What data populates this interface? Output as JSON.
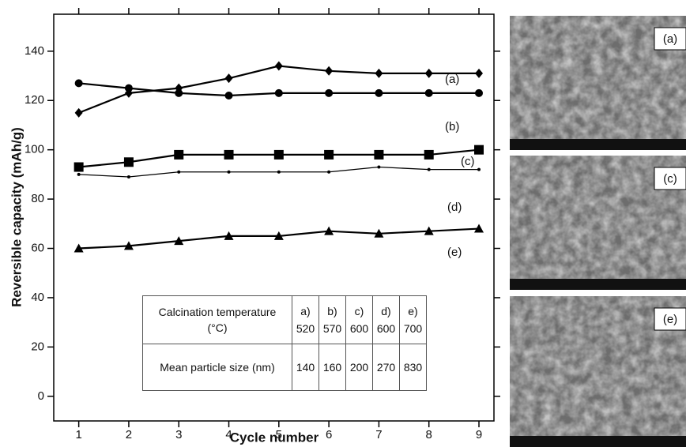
{
  "chart_data": {
    "type": "line",
    "xlabel": "Cycle number",
    "ylabel": "Reversible capacity (mAh/g)",
    "xlim": [
      0.5,
      9.3
    ],
    "ylim": [
      -10,
      155
    ],
    "xticks": [
      1,
      2,
      3,
      4,
      5,
      6,
      7,
      8,
      9
    ],
    "yticks": [
      0,
      20,
      40,
      60,
      80,
      100,
      120,
      140
    ],
    "x": [
      1,
      2,
      3,
      4,
      5,
      6,
      7,
      8,
      9
    ],
    "series": [
      {
        "name": "(a)",
        "color": "#000000",
        "marker": "diamond",
        "values": [
          115,
          123,
          125,
          129,
          134,
          132,
          131,
          131,
          131
        ]
      },
      {
        "name": "(b)",
        "color": "#000000",
        "marker": "circle",
        "values": [
          127,
          125,
          123,
          122,
          123,
          123,
          123,
          123,
          123
        ]
      },
      {
        "name": "(c)",
        "color": "#000000",
        "marker": "square",
        "values": [
          93,
          95,
          98,
          98,
          98,
          98,
          98,
          98,
          100
        ]
      },
      {
        "name": "(d)",
        "color": "#000000",
        "marker": "dot",
        "values": [
          90,
          89,
          91,
          91,
          91,
          91,
          93,
          92,
          92
        ]
      },
      {
        "name": "(e)",
        "color": "#000000",
        "marker": "triangle",
        "values": [
          60,
          61,
          63,
          65,
          65,
          67,
          66,
          67,
          68
        ]
      }
    ],
    "table": {
      "headers": [
        "a)",
        "b)",
        "c)",
        "d)",
        "e)"
      ],
      "rows": [
        {
          "label": "Calcination temperature (°C)",
          "values": [
            "520",
            "570",
            "600",
            "600",
            "700"
          ]
        },
        {
          "label": "Mean particle size (nm)",
          "values": [
            "140",
            "160",
            "200",
            "270",
            "830"
          ]
        }
      ]
    },
    "images": [
      {
        "label": "(a)"
      },
      {
        "label": "(c)"
      },
      {
        "label": "(e)"
      }
    ]
  }
}
